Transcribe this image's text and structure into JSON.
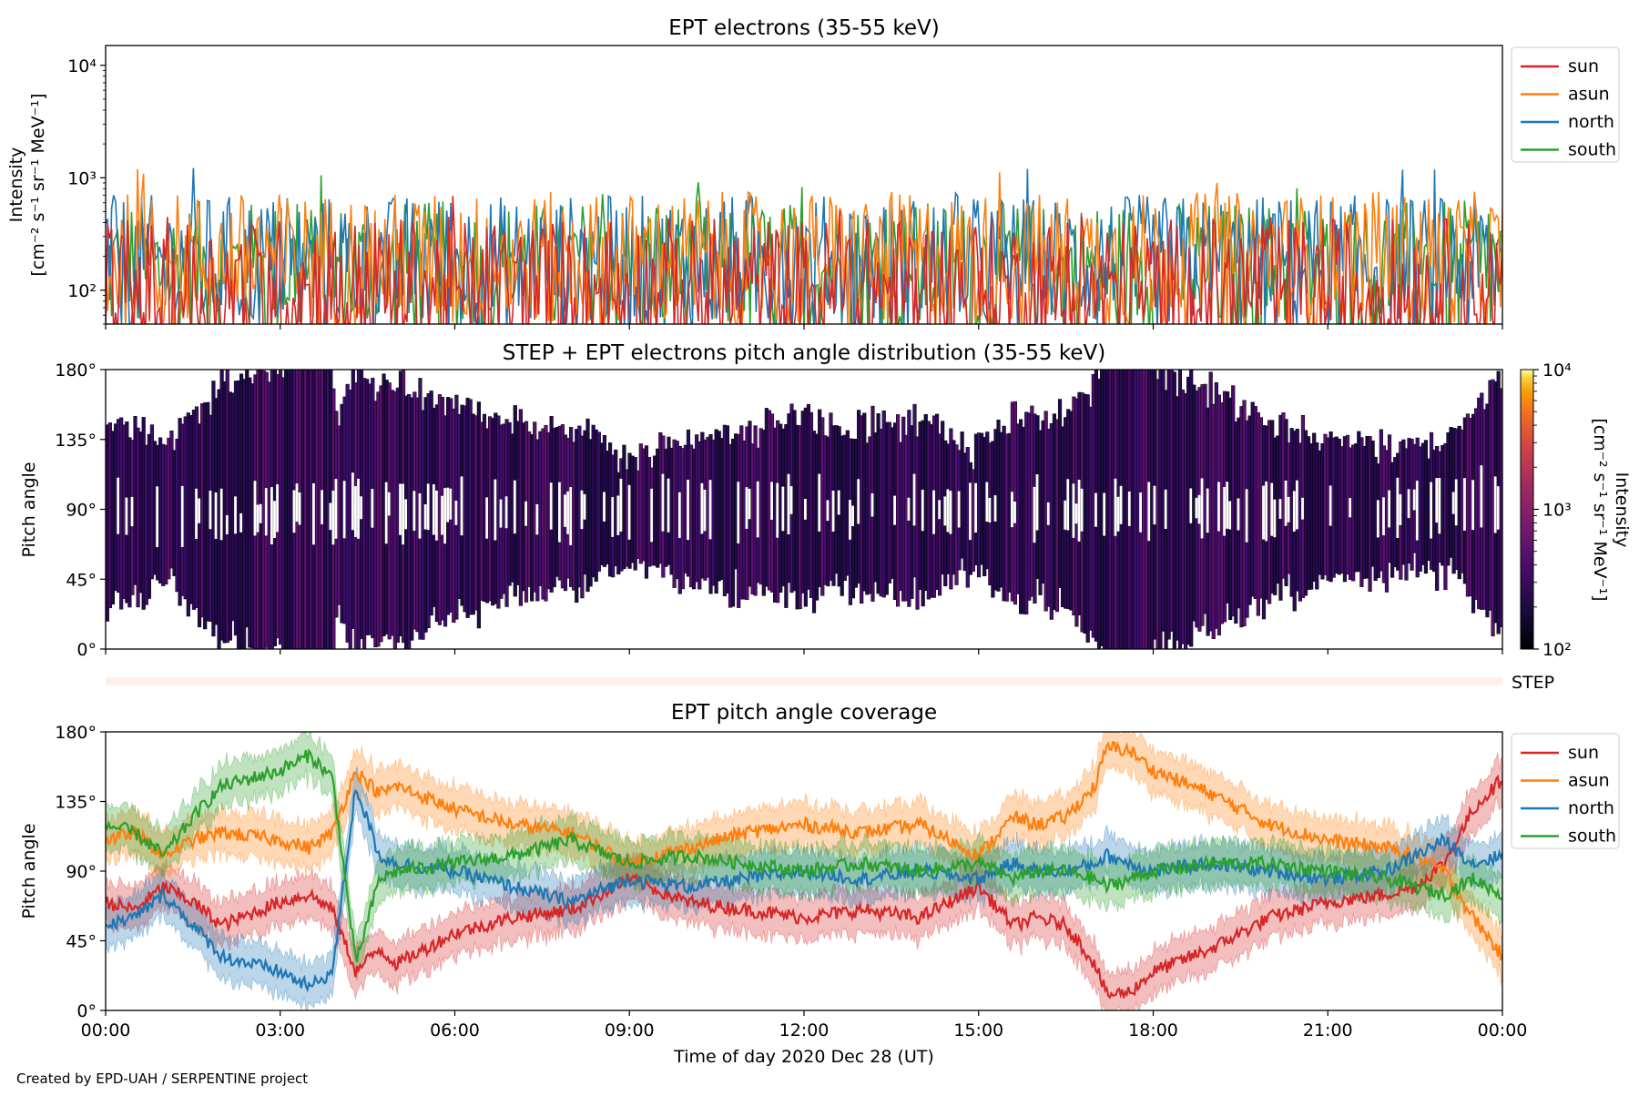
{
  "chart_data": [
    {
      "id": "p1",
      "type": "line",
      "title": "EPT electrons (35-55 keV)",
      "ylabel": [
        "Intensity",
        "[cm⁻² s⁻¹ sr⁻¹ MeV⁻¹]"
      ],
      "yscale": "log",
      "ylim": [
        50,
        15000
      ],
      "yticks": [
        {
          "v": 100,
          "label": "10²"
        },
        {
          "v": 1000,
          "label": "10³"
        },
        {
          "v": 10000,
          "label": "10⁴"
        }
      ],
      "x_unit": "hours",
      "xlim": [
        0,
        24
      ],
      "legend": {
        "placement": "outside-right-top"
      },
      "series": [
        {
          "name": "south",
          "color": "#2ca02c",
          "base": 150,
          "spread": 0.55
        },
        {
          "name": "north",
          "color": "#1f77b4",
          "base": 170,
          "spread": 0.55
        },
        {
          "name": "asun",
          "color": "#ff7f0e",
          "base": 180,
          "spread": 0.55
        },
        {
          "name": "sun",
          "color": "#d62728",
          "base": 95,
          "spread": 0.6
        }
      ],
      "legend_order": [
        "sun",
        "asun",
        "north",
        "south"
      ]
    },
    {
      "id": "p2",
      "type": "heatmap",
      "title": "STEP + EPT electrons pitch angle distribution (35-55 keV)",
      "ylabel": "Pitch angle",
      "ylim": [
        0,
        180
      ],
      "yticks": [
        {
          "v": 0,
          "label": "0°"
        },
        {
          "v": 45,
          "label": "45°"
        },
        {
          "v": 90,
          "label": "90°"
        },
        {
          "v": 135,
          "label": "135°"
        },
        {
          "v": 180,
          "label": "180°"
        }
      ],
      "xlim": [
        0,
        24
      ],
      "colorbar": {
        "label": [
          "Intensity",
          "[cm⁻² s⁻¹ sr⁻¹ MeV⁻¹]"
        ],
        "scale": "log",
        "range": [
          100,
          10000
        ],
        "ticks": [
          {
            "v": 100,
            "label": "10²"
          },
          {
            "v": 1000,
            "label": "10³"
          },
          {
            "v": 10000,
            "label": "10⁴"
          }
        ],
        "colormap": "inferno"
      }
    },
    {
      "id": "step",
      "type": "heatmap",
      "label": "STEP",
      "color": "#fdf0ea"
    },
    {
      "id": "p3",
      "type": "line",
      "title": "EPT pitch angle coverage",
      "ylabel": "Pitch angle",
      "xlabel": "Time of day 2020 Dec 28 (UT)",
      "ylim": [
        0,
        180
      ],
      "yticks": [
        {
          "v": 0,
          "label": "0°"
        },
        {
          "v": 45,
          "label": "45°"
        },
        {
          "v": 90,
          "label": "90°"
        },
        {
          "v": 135,
          "label": "135°"
        },
        {
          "v": 180,
          "label": "180°"
        }
      ],
      "xlim": [
        0,
        24
      ],
      "xticks": [
        {
          "v": 0,
          "label": "00:00"
        },
        {
          "v": 3,
          "label": "03:00"
        },
        {
          "v": 6,
          "label": "06:00"
        },
        {
          "v": 9,
          "label": "09:00"
        },
        {
          "v": 12,
          "label": "12:00"
        },
        {
          "v": 15,
          "label": "15:00"
        },
        {
          "v": 18,
          "label": "18:00"
        },
        {
          "v": 21,
          "label": "21:00"
        },
        {
          "v": 24,
          "label": "00:00"
        }
      ],
      "legend": {
        "placement": "outside-right-top"
      },
      "band_halfwidth_deg": 14,
      "series": [
        {
          "name": "sun",
          "color": "#d62728",
          "keypoints": [
            [
              0,
              70
            ],
            [
              0.5,
              65
            ],
            [
              1.0,
              80
            ],
            [
              1.5,
              70
            ],
            [
              2,
              55
            ],
            [
              3,
              70
            ],
            [
              3.5,
              75
            ],
            [
              3.9,
              65
            ],
            [
              4.3,
              25
            ],
            [
              4.7,
              40
            ],
            [
              5,
              30
            ],
            [
              6,
              50
            ],
            [
              7,
              60
            ],
            [
              8,
              65
            ],
            [
              9,
              85
            ],
            [
              10,
              70
            ],
            [
              11,
              65
            ],
            [
              12,
              60
            ],
            [
              13,
              65
            ],
            [
              14,
              60
            ],
            [
              15,
              80
            ],
            [
              15.6,
              55
            ],
            [
              16,
              60
            ],
            [
              16.5,
              55
            ],
            [
              17,
              30
            ],
            [
              17.2,
              10
            ],
            [
              17.6,
              12
            ],
            [
              18,
              25
            ],
            [
              19,
              40
            ],
            [
              20,
              60
            ],
            [
              21,
              70
            ],
            [
              22,
              75
            ],
            [
              22.5,
              80
            ],
            [
              23,
              95
            ],
            [
              23.5,
              130
            ],
            [
              24,
              150
            ]
          ]
        },
        {
          "name": "asun",
          "color": "#ff7f0e",
          "keypoints": [
            [
              0,
              110
            ],
            [
              0.5,
              115
            ],
            [
              1.0,
              100
            ],
            [
              1.5,
              110
            ],
            [
              2,
              115
            ],
            [
              3,
              110
            ],
            [
              3.5,
              105
            ],
            [
              3.9,
              115
            ],
            [
              4.3,
              155
            ],
            [
              4.7,
              140
            ],
            [
              5,
              145
            ],
            [
              6,
              130
            ],
            [
              7,
              120
            ],
            [
              8,
              115
            ],
            [
              9,
              95
            ],
            [
              10,
              105
            ],
            [
              11,
              115
            ],
            [
              12,
              120
            ],
            [
              13,
              115
            ],
            [
              14,
              120
            ],
            [
              15,
              100
            ],
            [
              15.6,
              125
            ],
            [
              16,
              120
            ],
            [
              16.5,
              125
            ],
            [
              17,
              145
            ],
            [
              17.2,
              170
            ],
            [
              17.6,
              168
            ],
            [
              18,
              155
            ],
            [
              19,
              140
            ],
            [
              20,
              120
            ],
            [
              21,
              110
            ],
            [
              22,
              105
            ],
            [
              22.5,
              100
            ],
            [
              23,
              90
            ],
            [
              23.5,
              60
            ],
            [
              24,
              35
            ]
          ]
        },
        {
          "name": "north",
          "color": "#1f77b4",
          "keypoints": [
            [
              0,
              55
            ],
            [
              0.5,
              60
            ],
            [
              1.0,
              75
            ],
            [
              1.5,
              55
            ],
            [
              2,
              35
            ],
            [
              3,
              25
            ],
            [
              3.5,
              15
            ],
            [
              3.9,
              25
            ],
            [
              4.3,
              145
            ],
            [
              4.7,
              100
            ],
            [
              5,
              95
            ],
            [
              6,
              90
            ],
            [
              7,
              80
            ],
            [
              8,
              70
            ],
            [
              9,
              85
            ],
            [
              10,
              80
            ],
            [
              11,
              85
            ],
            [
              12,
              90
            ],
            [
              13,
              85
            ],
            [
              14,
              90
            ],
            [
              15,
              85
            ],
            [
              15.6,
              95
            ],
            [
              16,
              90
            ],
            [
              16.5,
              90
            ],
            [
              17,
              95
            ],
            [
              17.2,
              100
            ],
            [
              17.6,
              95
            ],
            [
              18,
              90
            ],
            [
              19,
              95
            ],
            [
              20,
              90
            ],
            [
              21,
              85
            ],
            [
              22,
              90
            ],
            [
              22.5,
              100
            ],
            [
              23,
              110
            ],
            [
              23.5,
              95
            ],
            [
              24,
              100
            ]
          ]
        },
        {
          "name": "south",
          "color": "#2ca02c",
          "keypoints": [
            [
              0,
              120
            ],
            [
              0.5,
              115
            ],
            [
              1.0,
              100
            ],
            [
              1.5,
              125
            ],
            [
              2,
              145
            ],
            [
              3,
              155
            ],
            [
              3.5,
              165
            ],
            [
              3.9,
              150
            ],
            [
              4.3,
              30
            ],
            [
              4.7,
              85
            ],
            [
              5,
              90
            ],
            [
              6,
              95
            ],
            [
              7,
              100
            ],
            [
              8,
              110
            ],
            [
              9,
              95
            ],
            [
              10,
              100
            ],
            [
              11,
              95
            ],
            [
              12,
              90
            ],
            [
              13,
              95
            ],
            [
              14,
              90
            ],
            [
              15,
              95
            ],
            [
              15.6,
              85
            ],
            [
              16,
              90
            ],
            [
              16.5,
              90
            ],
            [
              17,
              85
            ],
            [
              17.2,
              80
            ],
            [
              17.6,
              85
            ],
            [
              18,
              90
            ],
            [
              19,
              95
            ],
            [
              20,
              95
            ],
            [
              21,
              90
            ],
            [
              22,
              85
            ],
            [
              22.5,
              80
            ],
            [
              23,
              75
            ],
            [
              23.5,
              85
            ],
            [
              24,
              75
            ]
          ]
        }
      ],
      "legend_order": [
        "sun",
        "asun",
        "north",
        "south"
      ]
    }
  ],
  "footer": {
    "credit": "Created by EPD-UAH / SERPENTINE project"
  }
}
